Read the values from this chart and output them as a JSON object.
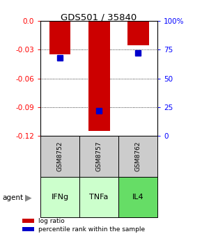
{
  "title": "GDS501 / 35840",
  "samples": [
    "GSM8752",
    "GSM8757",
    "GSM8762"
  ],
  "agents": [
    "IFNg",
    "TNFa",
    "IL4"
  ],
  "log_ratios": [
    -0.035,
    -0.115,
    -0.025
  ],
  "percentile_ranks": [
    68,
    22,
    72
  ],
  "ylim_left": [
    -0.12,
    0.0
  ],
  "ylim_right": [
    0,
    100
  ],
  "yticks_left": [
    0.0,
    -0.03,
    -0.06,
    -0.09,
    -0.12
  ],
  "yticks_right": [
    0,
    25,
    50,
    75,
    100
  ],
  "bar_color": "#cc0000",
  "percentile_color": "#0000cc",
  "agent_colors": [
    "#ccffcc",
    "#ccffcc",
    "#66dd66"
  ],
  "sample_box_color": "#cccccc",
  "bar_width": 0.55,
  "percentile_marker_size": 6,
  "figsize": [
    2.9,
    3.36
  ],
  "dpi": 100
}
